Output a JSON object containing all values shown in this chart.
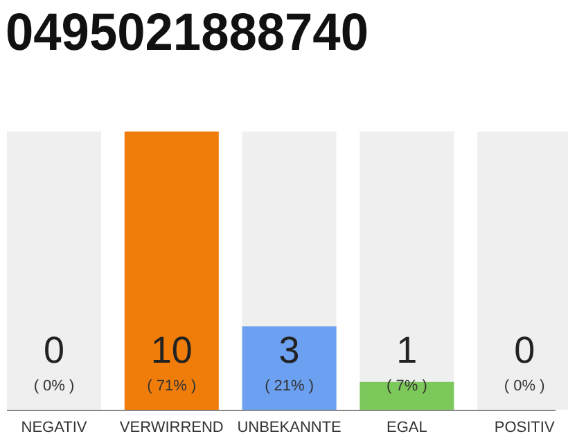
{
  "chart_data": {
    "type": "bar",
    "title": "0495021888740",
    "categories": [
      "NEGATIV",
      "VERWIRREND",
      "UNBEKANNTE",
      "EGAL",
      "POSITIV"
    ],
    "values": [
      0,
      10,
      3,
      1,
      0
    ],
    "colors": [
      "#f07d0a",
      "#f07d0a",
      "#6ca0f0",
      "#7dc85a",
      "#f07d0a"
    ],
    "tick_labels": "x",
    "value_labels": [
      "0\n( 0% )",
      "10\n( 71% )",
      "3\n( 21% )",
      "1\n( 7% )",
      "0\n( 0% )"
    ],
    "bands": [
      {
        "axis": "x",
        "from": "NEGATIV",
        "to": "NEGATIV",
        "color": "#efefef"
      },
      {
        "axis": "x",
        "from": "UNBEKANNTE",
        "to": "UNBEKANNTE",
        "color": "#efefef"
      },
      {
        "axis": "x",
        "from": "EGAL",
        "to": "EGAL",
        "color": "#efefef"
      },
      {
        "axis": "x",
        "from": "POSITIV",
        "to": "POSITIV",
        "color": "#efefef"
      }
    ]
  }
}
